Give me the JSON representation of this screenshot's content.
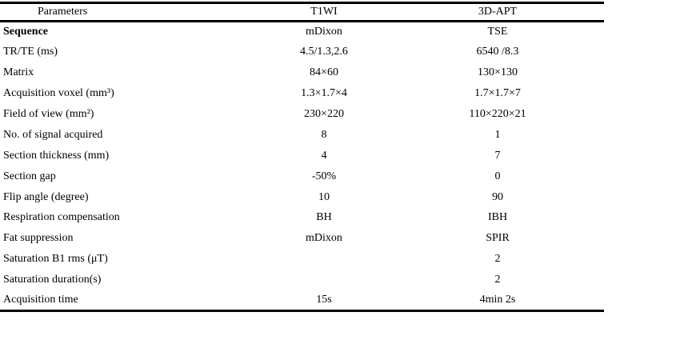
{
  "page": {
    "background": "#ffffff",
    "text_color": "#000000",
    "rule_color": "#000000"
  },
  "table": {
    "description": "MRI acquisition parameters comparison table",
    "columns": [
      {
        "key": "label",
        "label": "Parameters"
      },
      {
        "key": "t1wi",
        "label": "T1WI"
      },
      {
        "key": "apt",
        "label": "3D-APT"
      }
    ],
    "rows": [
      {
        "label": "Sequence",
        "bold": true,
        "t1wi": "mDixon",
        "apt": "TSE"
      },
      {
        "label": "TR/TE (ms)",
        "bold": false,
        "t1wi": "4.5/1.3,2.6",
        "apt": "6540 /8.3"
      },
      {
        "label": "Matrix",
        "bold": false,
        "t1wi": "84×60",
        "apt": "130×130"
      },
      {
        "label": "Acquisition voxel (mm³)",
        "bold": false,
        "t1wi": "1.3×1.7×4",
        "apt": "1.7×1.7×7"
      },
      {
        "label": "Field of view (mm²)",
        "bold": false,
        "t1wi": "230×220",
        "apt": "110×220×21"
      },
      {
        "label": "No. of signal acquired",
        "bold": false,
        "t1wi": "8",
        "apt": "1"
      },
      {
        "label": "Section thickness (mm)",
        "bold": false,
        "t1wi": "4",
        "apt": "7"
      },
      {
        "label": "Section gap",
        "bold": false,
        "t1wi": "-50%",
        "apt": "0"
      },
      {
        "label": "Flip angle (degree)",
        "bold": false,
        "t1wi": "10",
        "apt": "90"
      },
      {
        "label": "Respiration compensation",
        "bold": false,
        "t1wi": "BH",
        "apt": "IBH"
      },
      {
        "label": "Fat suppression",
        "bold": false,
        "t1wi": "mDixon",
        "apt": "SPIR"
      },
      {
        "label": "Saturation B1 rms (μT)",
        "bold": false,
        "t1wi": "",
        "apt": "2"
      },
      {
        "label": "Saturation duration(s)",
        "bold": false,
        "t1wi": "",
        "apt": "2"
      },
      {
        "label": "Acquisition time",
        "bold": false,
        "t1wi": "15s",
        "apt": "4min 2s"
      }
    ]
  }
}
